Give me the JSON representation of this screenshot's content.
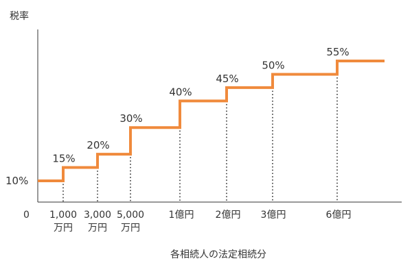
{
  "chart_data": {
    "type": "line",
    "subtype": "step",
    "title": "",
    "ylabel": "税率",
    "xlabel": "各相続人の法定相続分",
    "origin_label": "0",
    "line_color": "#f08a3c",
    "axis_color": "#333333",
    "y_tick": "10%",
    "x_ticks": [
      [
        "1,000",
        "万円"
      ],
      [
        "3,000",
        "万円"
      ],
      [
        "5,000",
        "万円"
      ],
      [
        "1億円"
      ],
      [
        "2億円"
      ],
      [
        "3億円"
      ],
      [
        "6億円"
      ]
    ],
    "steps": [
      {
        "rate": "10%",
        "value": 10
      },
      {
        "rate": "15%",
        "value": 15
      },
      {
        "rate": "20%",
        "value": 20
      },
      {
        "rate": "30%",
        "value": 30
      },
      {
        "rate": "40%",
        "value": 40
      },
      {
        "rate": "45%",
        "value": 45
      },
      {
        "rate": "50%",
        "value": 50
      },
      {
        "rate": "55%",
        "value": 55
      }
    ]
  }
}
